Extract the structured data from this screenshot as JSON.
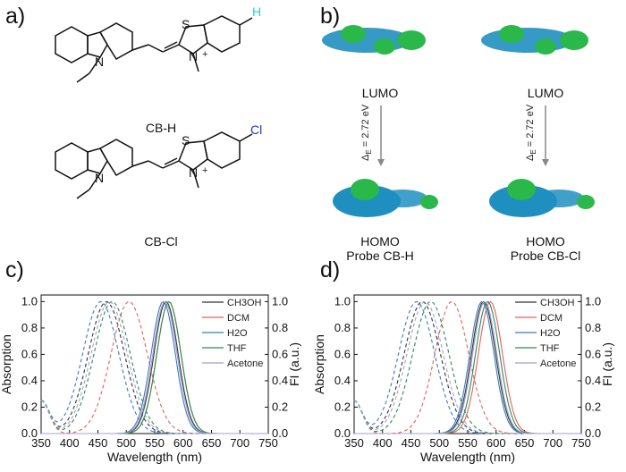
{
  "panels": {
    "a": "a)",
    "b": "b)",
    "c": "c)",
    "d": "d)"
  },
  "structures": {
    "top_label": "CB-H",
    "top_substituent": "H",
    "bottom_label": "CB-Cl",
    "bottom_substituent": "Cl",
    "S_atom": "S",
    "N_atom": "N",
    "plus": "+"
  },
  "orbitals": {
    "lumo_left": "LUMO",
    "lumo_right": "LUMO",
    "homo_left": "HOMO",
    "homo_right": "HOMO",
    "probe_left": "Probe CB-H",
    "probe_right": "Probe CB-Cl",
    "gap_left": "Δ",
    "gap_sub": "E",
    "gap_value": " = 2.72 eV"
  },
  "colors": {
    "CH3OH": "#333333",
    "DCM": "#e06060",
    "H2O": "#3a7bbf",
    "THF": "#2e8b57",
    "Acetone": "#a0a0d0"
  },
  "chart_data": [
    {
      "type": "line",
      "panel": "c",
      "xlabel": "Wavelength (nm)",
      "ylabel": "Absorption",
      "y2label": "FI (a.u.)",
      "xlim": [
        350,
        750
      ],
      "ylim": [
        0,
        1.05
      ],
      "xticks": [
        350,
        400,
        450,
        500,
        550,
        600,
        650,
        700,
        750
      ],
      "yticks": [
        0.0,
        0.2,
        0.4,
        0.6,
        0.8,
        1.0
      ],
      "series": [
        {
          "name": "CH3OH",
          "abs_peak": 465,
          "abs_width": 45,
          "fl_peak": 570,
          "fl_width": 30
        },
        {
          "name": "DCM",
          "abs_peak": 505,
          "abs_width": 45,
          "fl_peak": 575,
          "fl_width": 30
        },
        {
          "name": "H2O",
          "abs_peak": 455,
          "abs_width": 45,
          "fl_peak": 565,
          "fl_width": 30
        },
        {
          "name": "THF",
          "abs_peak": 475,
          "abs_width": 45,
          "fl_peak": 575,
          "fl_width": 30
        },
        {
          "name": "Acetone",
          "abs_peak": 470,
          "abs_width": 45,
          "fl_peak": 568,
          "fl_width": 30
        }
      ]
    },
    {
      "type": "line",
      "panel": "d",
      "xlabel": "Wavelength (nm)",
      "ylabel": "Absorption",
      "y2label": "FI (a.u.)",
      "xlim": [
        350,
        750
      ],
      "ylim": [
        0,
        1.05
      ],
      "xticks": [
        350,
        400,
        450,
        500,
        550,
        600,
        650,
        700,
        750
      ],
      "yticks": [
        0.0,
        0.2,
        0.4,
        0.6,
        0.8,
        1.0
      ],
      "series": [
        {
          "name": "CH3OH",
          "abs_peak": 470,
          "abs_width": 45,
          "fl_peak": 578,
          "fl_width": 30
        },
        {
          "name": "DCM",
          "abs_peak": 522,
          "abs_width": 42,
          "fl_peak": 590,
          "fl_width": 30
        },
        {
          "name": "H2O",
          "abs_peak": 460,
          "abs_width": 45,
          "fl_peak": 575,
          "fl_width": 30
        },
        {
          "name": "THF",
          "abs_peak": 485,
          "abs_width": 45,
          "fl_peak": 585,
          "fl_width": 30
        },
        {
          "name": "Acetone",
          "abs_peak": 475,
          "abs_width": 45,
          "fl_peak": 580,
          "fl_width": 30
        }
      ]
    }
  ]
}
